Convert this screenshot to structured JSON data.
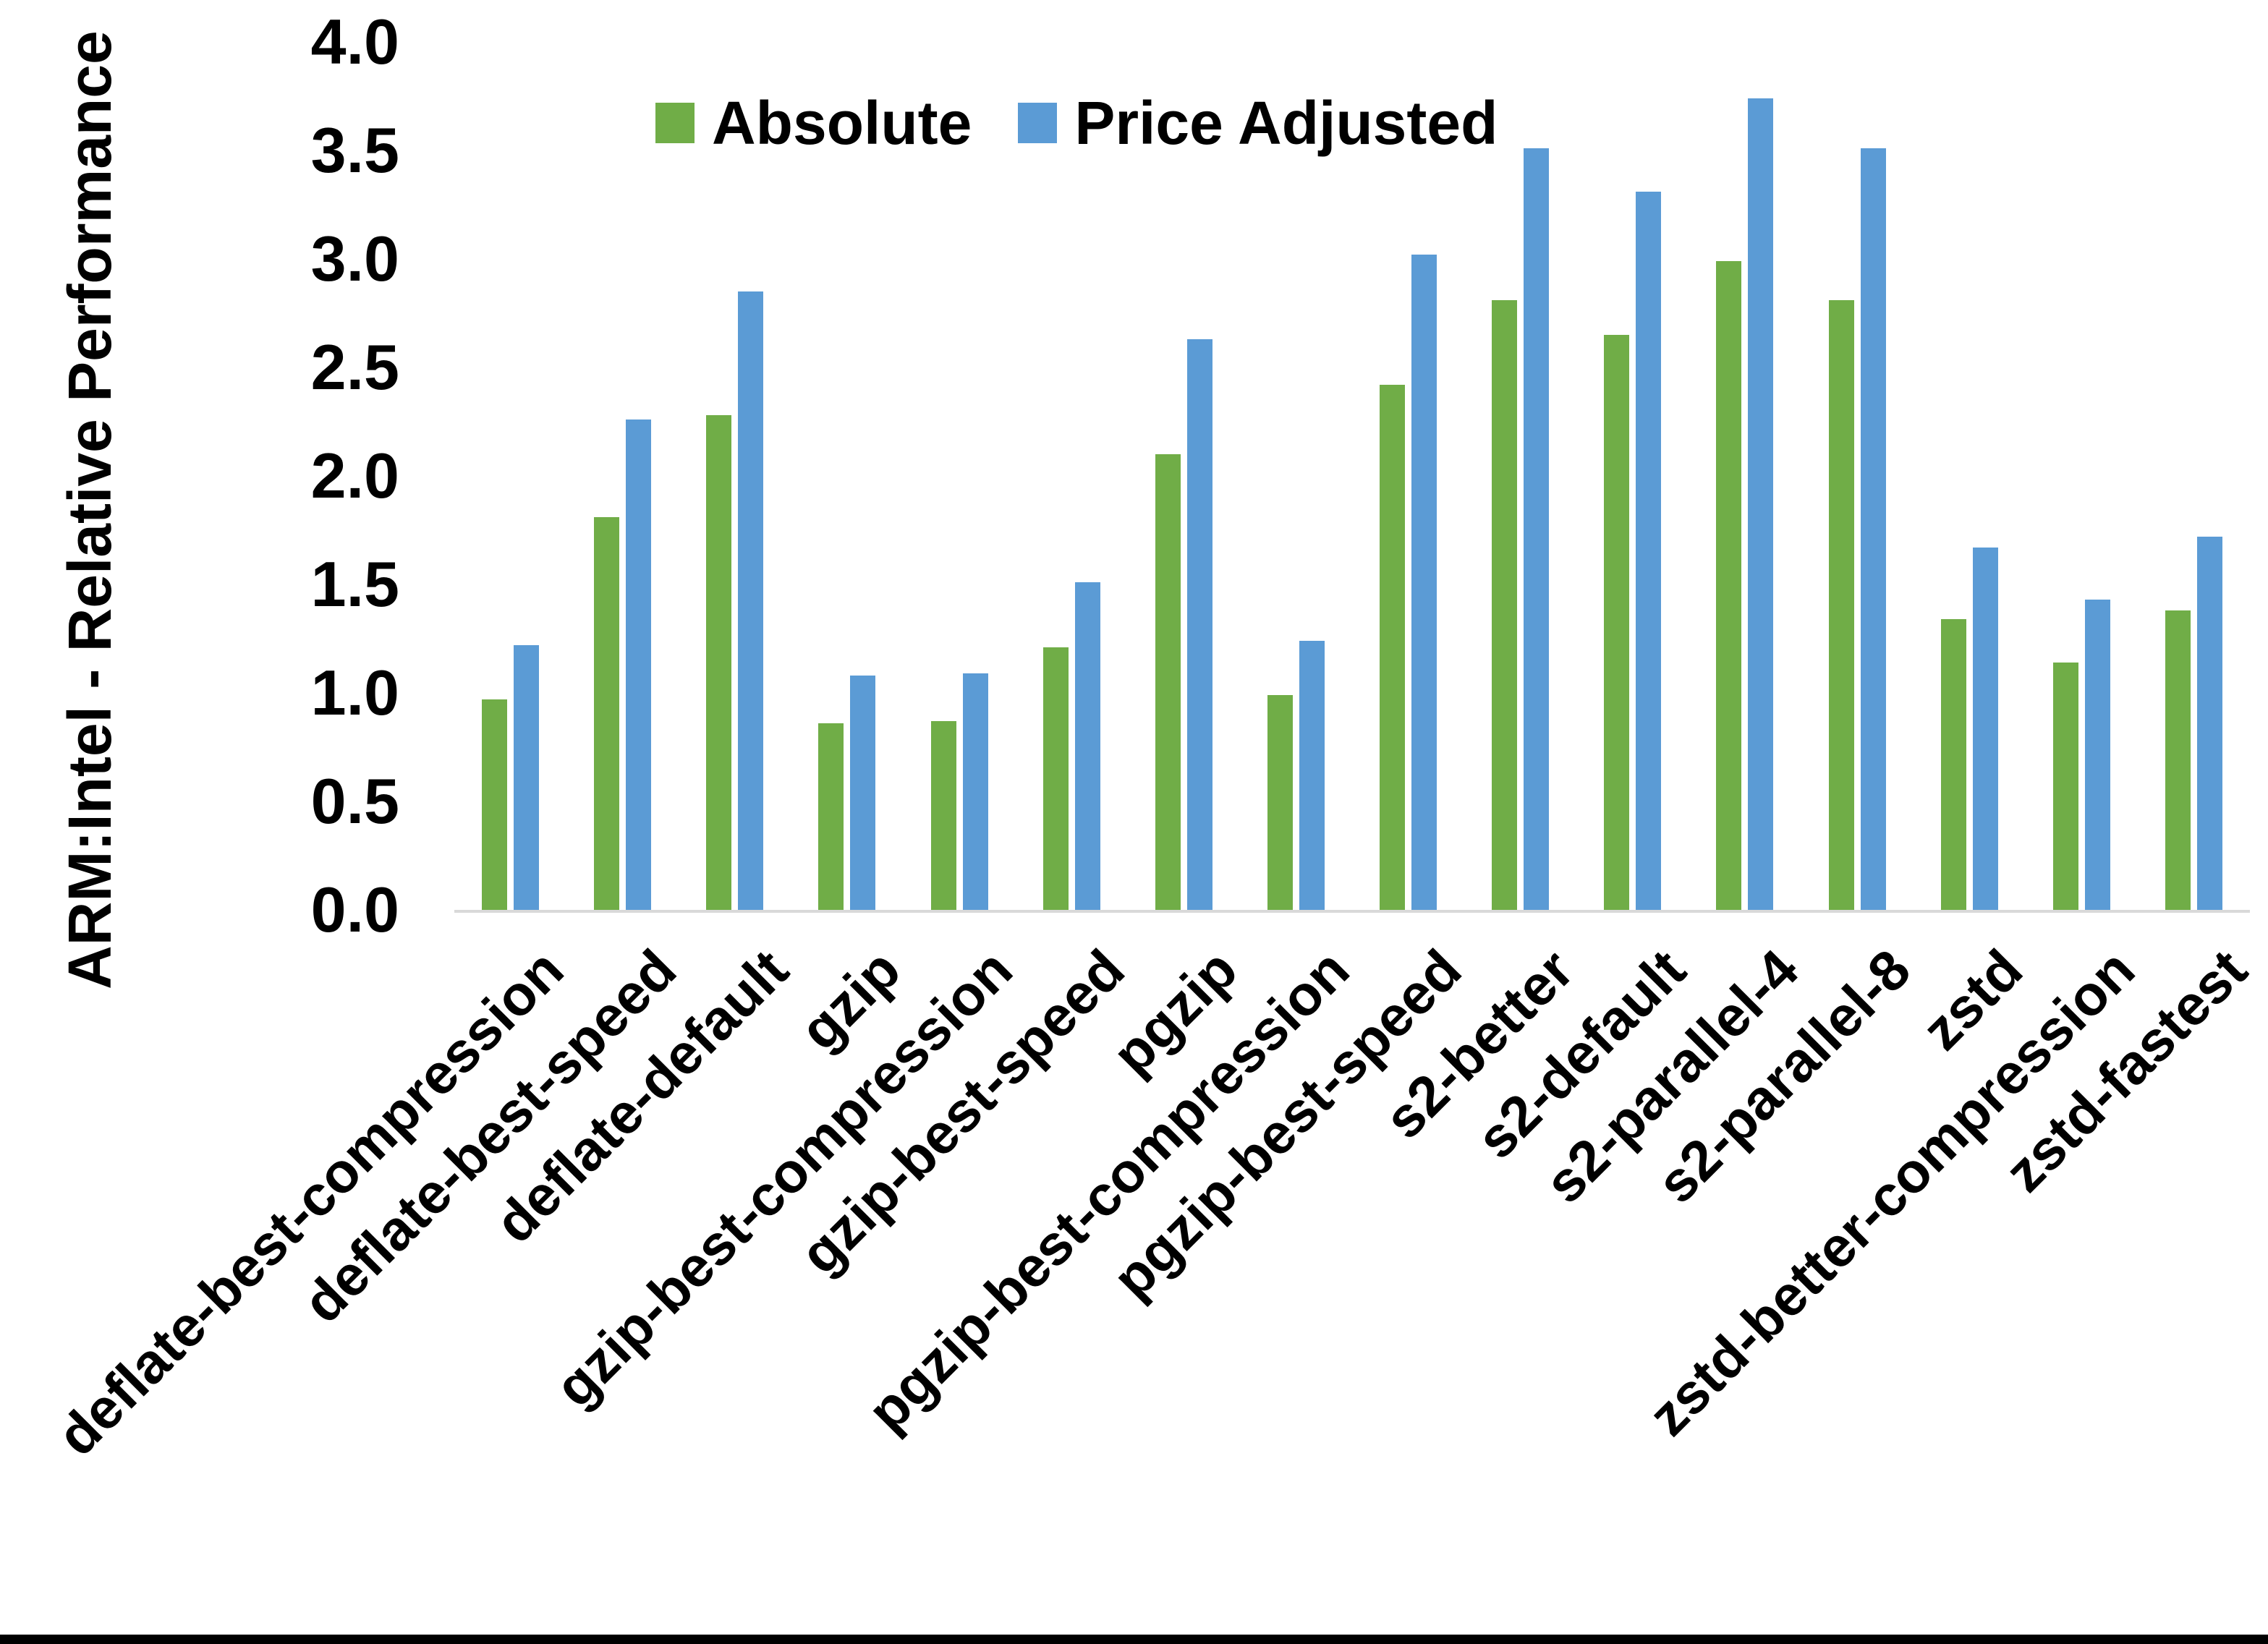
{
  "chart_data": {
    "type": "bar",
    "title": "",
    "ylabel": "ARM:Intel - Relative Performance",
    "xlabel": "",
    "ylim": [
      0.0,
      4.0
    ],
    "ytick_step": 0.5,
    "ytick_labels": [
      "0.0",
      "0.5",
      "1.0",
      "1.5",
      "2.0",
      "2.5",
      "3.0",
      "3.5",
      "4.0"
    ],
    "grid": "off",
    "legend_position": "top-center",
    "categories": [
      "deflate-best-compression",
      "deflate-best-speed",
      "deflate-default",
      "gzip",
      "gzip-best-compression",
      "gzip-best-speed",
      "pgzip",
      "pgzip-best-compression",
      "pgzip-best-speed",
      "s2-better",
      "s2-default",
      "s2-parallel-4",
      "s2-parallel-8",
      "zstd",
      "zstd-better-compression",
      "zstd-fastest"
    ],
    "series": [
      {
        "name": "Absolute",
        "color": "#70AD47",
        "values": [
          0.97,
          1.81,
          2.28,
          0.86,
          0.87,
          1.21,
          2.1,
          0.99,
          2.42,
          2.81,
          2.65,
          2.99,
          2.81,
          1.34,
          1.14,
          1.38
        ]
      },
      {
        "name": "Price Adjusted",
        "color": "#5B9BD5",
        "values": [
          1.22,
          2.26,
          2.85,
          1.08,
          1.09,
          1.51,
          2.63,
          1.24,
          3.02,
          3.51,
          3.31,
          3.74,
          3.51,
          1.67,
          1.43,
          1.72
        ]
      }
    ]
  },
  "legend": {
    "items": [
      {
        "label": "Absolute",
        "color": "#70AD47"
      },
      {
        "label": "Price Adjusted",
        "color": "#5B9BD5"
      }
    ]
  },
  "colors": {
    "background": "#FFFFFF",
    "axis_line": "#D9D9D9",
    "text": "#000000",
    "bottom_border": "#000000"
  }
}
